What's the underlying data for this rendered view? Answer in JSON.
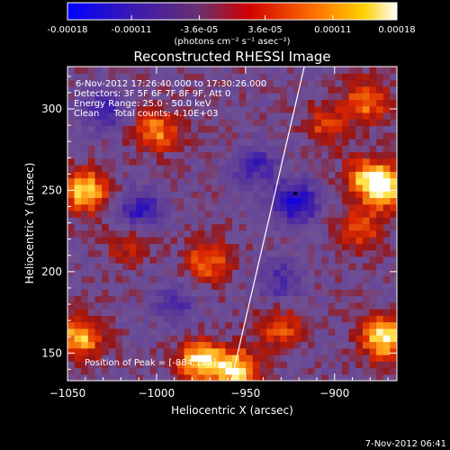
{
  "colorbar": {
    "tick_labels": [
      "-0.00018",
      "-0.00011",
      "-3.6e-05",
      "3.6e-05",
      "0.00011",
      "0.00018"
    ],
    "tick_values": [
      -0.00018,
      -0.00011,
      -3.6e-05,
      3.6e-05,
      0.00011,
      0.00018
    ],
    "range": [
      -0.00018,
      0.00018
    ],
    "units": "(photons cm⁻² s⁻¹ asec⁻²)"
  },
  "info": {
    "time_range": "6-Nov-2012 17:26:40.000 to 17:30:26.000",
    "detectors": "Detectors: 3F 5F 6F 7F 8F 9F, Att 0",
    "energy": "Energy Range: 25.0 - 50.0 keV",
    "clean": "Clean     Total counts: 4.10E+03",
    "peak": "Position of Peak = [-884,180]"
  },
  "footer_timestamp": "7-Nov-2012 06:41",
  "colors": {
    "background": "#000000",
    "text": "#ffffff",
    "map_low": "#2a10a8",
    "map_mid": "#6a4a9a",
    "map_high": "#ff9a20"
  },
  "chart_data": {
    "type": "heatmap",
    "title": "Reconstructed RHESSI Image",
    "xlabel": "Heliocentric X (arcsec)",
    "ylabel": "Heliocentric Y (arcsec)",
    "xlim": [
      -1050,
      -865
    ],
    "ylim": [
      133,
      326
    ],
    "x_ticks": [
      -1050,
      -1000,
      -950,
      -900
    ],
    "y_ticks": [
      150,
      200,
      250,
      300
    ],
    "colormap": "blue-purple-red-yellow-white",
    "peak_position": [
      -884,
      180
    ],
    "limb_line": [
      [
        -958,
        133
      ],
      [
        -917,
        326
      ]
    ],
    "hotspots": [
      {
        "x": -1040,
        "y": 250,
        "value": 0.00016
      },
      {
        "x": -1043,
        "y": 160,
        "value": 0.00015
      },
      {
        "x": -975,
        "y": 145,
        "value": 0.00017
      },
      {
        "x": -955,
        "y": 140,
        "value": 0.00016
      },
      {
        "x": -872,
        "y": 160,
        "value": 0.00018
      },
      {
        "x": -871,
        "y": 252,
        "value": 0.00015
      },
      {
        "x": -882,
        "y": 258,
        "value": 0.00012
      },
      {
        "x": -1000,
        "y": 287,
        "value": 0.00012
      },
      {
        "x": -971,
        "y": 207,
        "value": 0.00011
      },
      {
        "x": -882,
        "y": 305,
        "value": 0.00011
      },
      {
        "x": -905,
        "y": 290,
        "value": 8e-05
      },
      {
        "x": -885,
        "y": 227,
        "value": 9e-05
      },
      {
        "x": -930,
        "y": 165,
        "value": 9e-05
      },
      {
        "x": -1015,
        "y": 217,
        "value": 7e-05
      }
    ],
    "coldspots": [
      {
        "x": -922,
        "y": 243,
        "value": -0.00016
      },
      {
        "x": -1008,
        "y": 238,
        "value": -0.00012
      },
      {
        "x": -945,
        "y": 265,
        "value": -0.0001
      },
      {
        "x": -1030,
        "y": 300,
        "value": -0.0001
      },
      {
        "x": -930,
        "y": 195,
        "value": -9e-05
      },
      {
        "x": -990,
        "y": 180,
        "value": -8e-05
      }
    ]
  }
}
